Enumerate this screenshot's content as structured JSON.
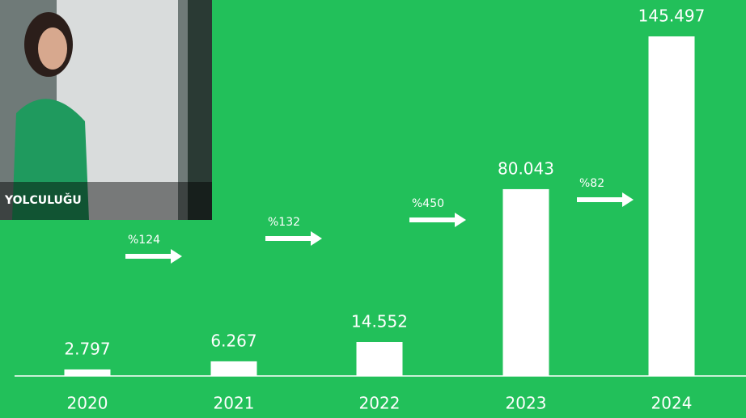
{
  "chart_data": {
    "type": "bar",
    "image_text": "YOLCULUĞU",
    "categories": [
      "2020",
      "2021",
      "2022",
      "2023",
      "2024"
    ],
    "values": [
      2797,
      6267,
      14552,
      80043,
      145497
    ],
    "value_labels": [
      "2.797",
      "6.267",
      "14.552",
      "80.043",
      "145.497"
    ],
    "growth_labels": [
      "%124",
      "%132",
      "%450",
      "%82"
    ],
    "color": "#ffffff"
  }
}
